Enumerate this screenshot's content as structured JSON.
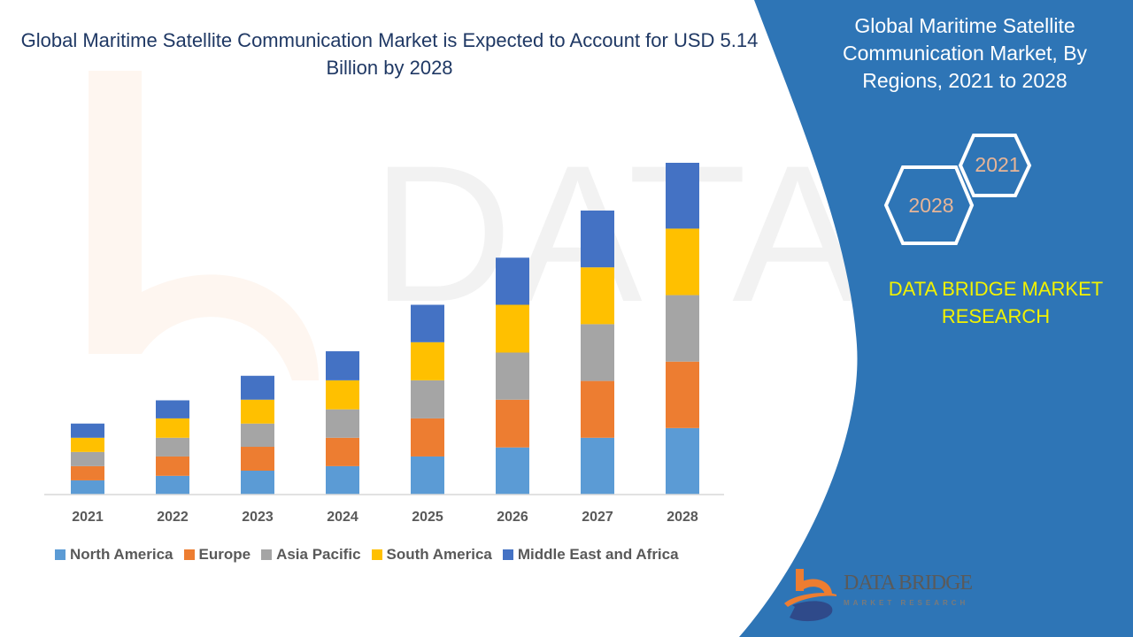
{
  "title": "Global Maritime Satellite Communication Market is Expected to Account for USD 5.14 Billion by 2028",
  "side_panel": {
    "title": "Global Maritime Satellite Communication Market, By Regions, 2021 to 2028",
    "hex_start_year": "2021",
    "hex_end_year": "2028",
    "brand": "DATA BRIDGE MARKET RESEARCH",
    "logo_name": "DATA BRIDGE",
    "logo_sub": "MARKET RESEARCH",
    "panel_color": "#2e75b6"
  },
  "chart_data": {
    "type": "bar",
    "stacked": true,
    "categories": [
      "2021",
      "2022",
      "2023",
      "2024",
      "2025",
      "2026",
      "2027",
      "2028"
    ],
    "series": [
      {
        "name": "North America",
        "color": "#5b9bd5",
        "values": [
          0.22,
          0.29,
          0.37,
          0.44,
          0.59,
          0.73,
          0.88,
          1.03
        ]
      },
      {
        "name": "Europe",
        "color": "#ed7d31",
        "values": [
          0.22,
          0.3,
          0.37,
          0.44,
          0.59,
          0.74,
          0.88,
          1.03
        ]
      },
      {
        "name": "Asia Pacific",
        "color": "#a5a5a5",
        "values": [
          0.22,
          0.29,
          0.36,
          0.44,
          0.59,
          0.73,
          0.88,
          1.03
        ]
      },
      {
        "name": "South America",
        "color": "#ffc000",
        "values": [
          0.22,
          0.3,
          0.37,
          0.45,
          0.59,
          0.74,
          0.88,
          1.03
        ]
      },
      {
        "name": "Middle East and Africa",
        "color": "#4472c4",
        "values": [
          0.22,
          0.28,
          0.37,
          0.45,
          0.58,
          0.73,
          0.88,
          1.02
        ]
      }
    ],
    "ylim": [
      0,
      5.14
    ],
    "grid": false,
    "legend": "bottom"
  }
}
